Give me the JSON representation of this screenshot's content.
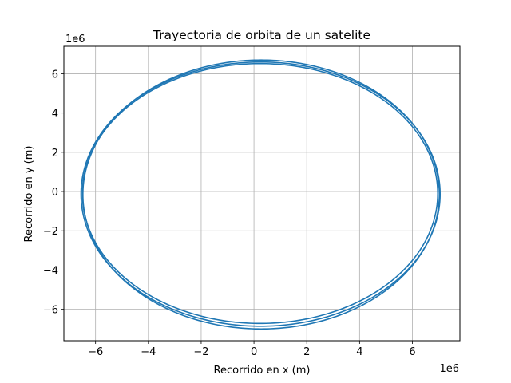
{
  "chart_data": {
    "type": "line",
    "title": "Trayectoria de orbita de un satelite",
    "xlabel": "Recorrido en x (m)",
    "ylabel": "Recorrido en y (m)",
    "x_offset_label": "1e6",
    "y_offset_label": "1e6",
    "xlim": [
      -7.2,
      7.8
    ],
    "ylim": [
      -7.6,
      7.4
    ],
    "xticks": [
      -6,
      -4,
      -2,
      0,
      2,
      4,
      6
    ],
    "yticks": [
      -6,
      -4,
      -2,
      0,
      2,
      4,
      6
    ],
    "xtick_labels": [
      "−6",
      "−4",
      "−2",
      "0",
      "2",
      "4",
      "6"
    ],
    "ytick_labels": [
      "−6",
      "−4",
      "−2",
      "0",
      "2",
      "4",
      "6"
    ],
    "units_scale": 1000000,
    "grid": true,
    "series_color": "#1f77b4",
    "series": [
      {
        "description_of_loops": "three nearly overlapping elliptical loops",
        "loops": [
          {
            "cx": 0.27,
            "cy": -0.15,
            "rx": 6.75,
            "ry": 6.85
          },
          {
            "cx": 0.25,
            "cy": -0.13,
            "rx": 6.8,
            "ry": 6.73
          },
          {
            "cx": 0.23,
            "cy": -0.1,
            "rx": 6.73,
            "ry": 6.62
          }
        ]
      }
    ]
  }
}
